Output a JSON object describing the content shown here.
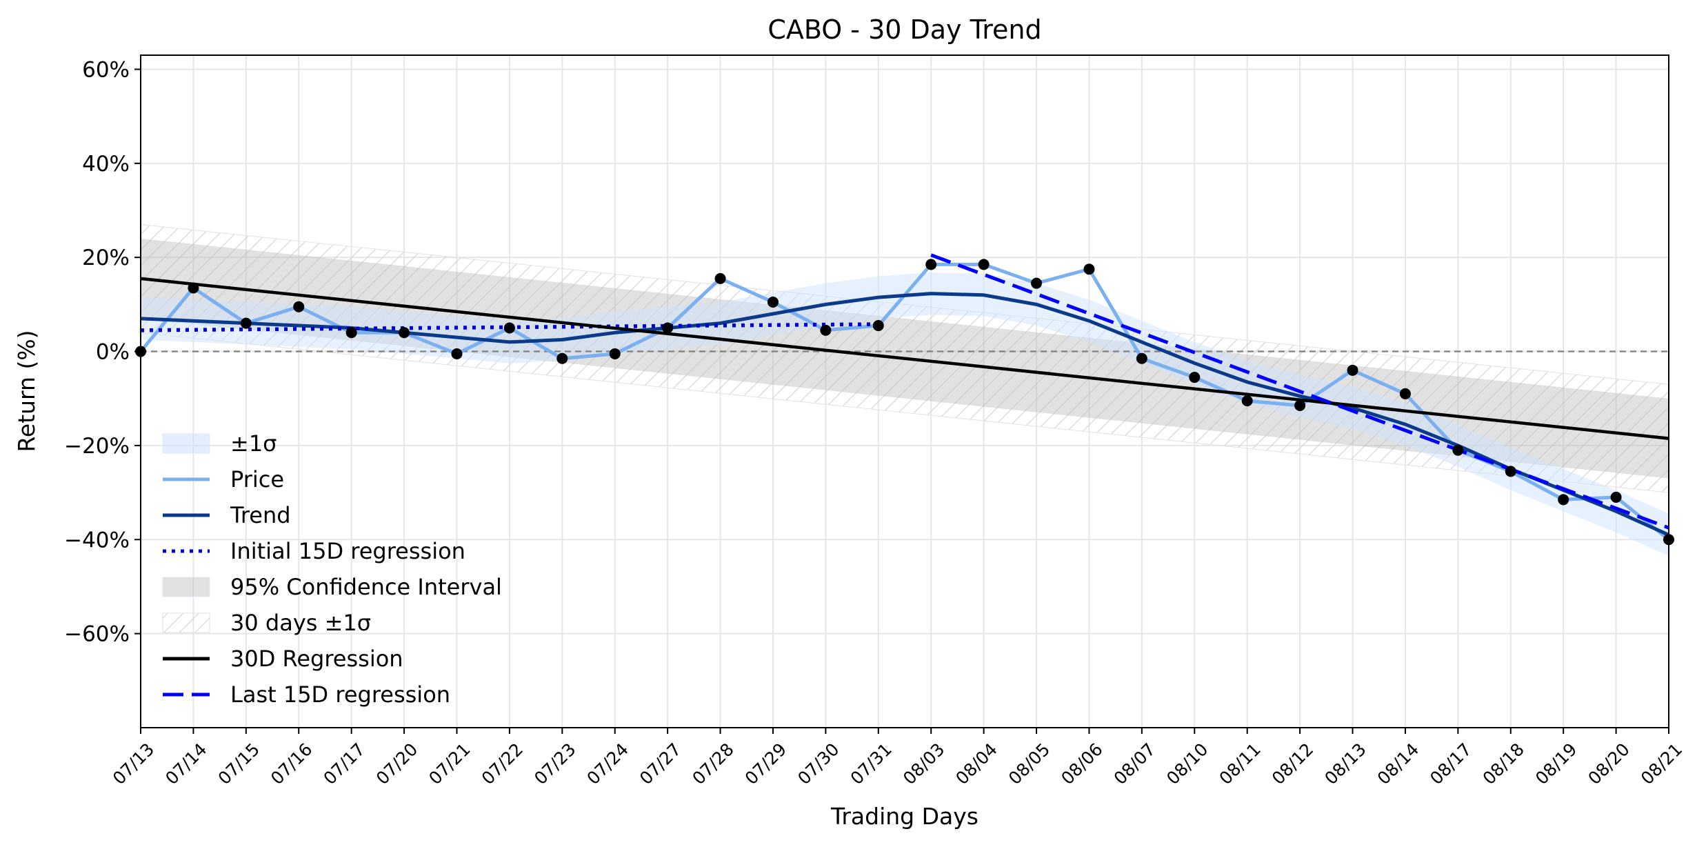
{
  "chart_data": {
    "type": "line",
    "title": "CABO - 30 Day Trend",
    "xlabel": "Trading Days",
    "ylabel": "Return (%)",
    "ylim": [
      -80,
      63
    ],
    "yticks": [
      60,
      40,
      20,
      0,
      -20,
      -40,
      -60
    ],
    "ytick_labels": [
      "60%",
      "40%",
      "20%",
      "0%",
      "−20%",
      "−40%",
      "−60%"
    ],
    "grid": true,
    "legend_position": "lower-left",
    "categories": [
      "07/13",
      "07/14",
      "07/15",
      "07/16",
      "07/17",
      "07/20",
      "07/21",
      "07/22",
      "07/23",
      "07/24",
      "07/27",
      "07/28",
      "07/29",
      "07/30",
      "07/31",
      "08/03",
      "08/04",
      "08/05",
      "08/06",
      "08/07",
      "08/10",
      "08/11",
      "08/12",
      "08/13",
      "08/14",
      "08/17",
      "08/18",
      "08/19",
      "08/20",
      "08/21"
    ],
    "series": [
      {
        "name": "Price",
        "style": "line-markers",
        "color": "#7ab0f0",
        "values": [
          0,
          13.5,
          6,
          9.5,
          4,
          4,
          -0.5,
          5,
          -1.5,
          -0.5,
          5,
          15.5,
          10.5,
          4.5,
          5.5,
          18.5,
          18.5,
          14.5,
          17.5,
          -1.5,
          -5.5,
          -10.5,
          -11.5,
          -4,
          -9,
          -21,
          -25.5,
          -31.5,
          -31,
          -40
        ]
      },
      {
        "name": "Trend",
        "style": "line",
        "color": "#0b3a8a",
        "values": [
          7,
          6.5,
          6,
          5.5,
          5,
          4,
          3,
          2,
          2.5,
          4,
          5,
          6,
          8,
          10,
          11.5,
          12.3,
          12,
          10,
          6.5,
          2,
          -2.5,
          -6.5,
          -9.5,
          -12,
          -15.5,
          -20,
          -25,
          -29.5,
          -34,
          -39
        ]
      },
      {
        "name": "Initial 15D regression",
        "style": "dotted",
        "color": "#0000dd",
        "x_range": [
          0,
          14
        ],
        "y_range": [
          4.5,
          5.8
        ]
      },
      {
        "name": "30D Regression",
        "style": "solid",
        "color": "#000000",
        "x_range": [
          0,
          29
        ],
        "y_range": [
          15.5,
          -18.5
        ]
      },
      {
        "name": "Last 15D regression",
        "style": "dashed",
        "color": "#0000ff",
        "x_range": [
          15,
          29
        ],
        "y_range": [
          20.5,
          -37.5
        ]
      },
      {
        "name": "±1σ",
        "style": "band",
        "color": "#cfe3fb",
        "half_width": 4.5
      },
      {
        "name": "95% Confidence Interval",
        "style": "band",
        "color": "#bdbdbd",
        "half_width": 8.5
      },
      {
        "name": "30 days ±1σ",
        "style": "hatched-band",
        "color": "#dddddd",
        "half_width": 11.5
      }
    ],
    "zero_line": 0
  }
}
